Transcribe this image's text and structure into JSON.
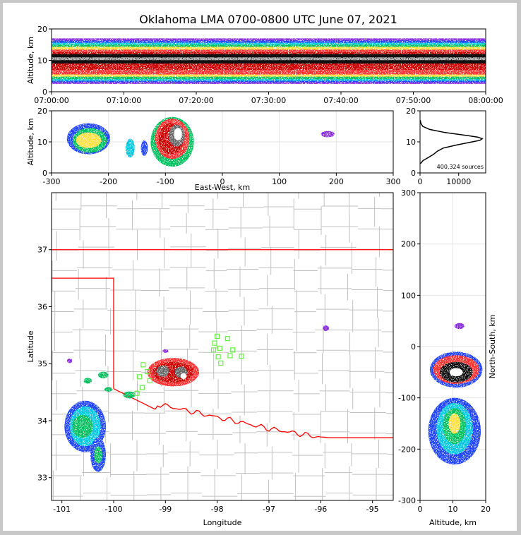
{
  "chart_data": [
    {
      "type": "heatmap",
      "name": "altitude-time",
      "title": "Oklahoma LMA 0700-0800 UTC June 07, 2021",
      "xlabel": "",
      "ylabel": "Altitude, km",
      "x_ticks": [
        "07:00:00",
        "07:10:00",
        "07:20:00",
        "07:30:00",
        "07:40:00",
        "07:50:00",
        "08:00:00"
      ],
      "y_ticks": [
        0,
        10,
        20
      ],
      "ylim": [
        0,
        20
      ],
      "layers": [
        {
          "color": "#8a2be2",
          "alt_range": [
            2.5,
            17.0
          ]
        },
        {
          "color": "#2244ff",
          "alt_range": [
            3.0,
            16.3
          ]
        },
        {
          "color": "#00c8e0",
          "alt_range": [
            3.5,
            15.6
          ]
        },
        {
          "color": "#00c060",
          "alt_range": [
            4.0,
            15.0
          ]
        },
        {
          "color": "#ffe040",
          "alt_range": [
            4.8,
            14.3
          ]
        },
        {
          "color": "#ff3030",
          "alt_range": [
            5.5,
            13.4
          ]
        },
        {
          "color": "#cc0000",
          "alt_range": [
            7.0,
            12.6
          ]
        },
        {
          "color": "#111111",
          "alt_range": [
            9.0,
            12.0
          ]
        }
      ]
    },
    {
      "type": "heatmap",
      "name": "east-west-altitude",
      "xlabel": "East-West, km",
      "ylabel": "Altitude, km",
      "x_ticks": [
        -300,
        -200,
        -100,
        0,
        100,
        200,
        300
      ],
      "y_ticks": [
        0,
        10,
        20
      ],
      "xlim": [
        -300,
        300
      ],
      "ylim": [
        0,
        20
      ],
      "cells": [
        {
          "x": -235,
          "y": 11,
          "rx": 38,
          "ry": 5,
          "color": "#2244ff"
        },
        {
          "x": -233,
          "y": 10.5,
          "rx": 30,
          "ry": 4,
          "color": "#00c060"
        },
        {
          "x": -235,
          "y": 10.5,
          "rx": 22,
          "ry": 2.5,
          "color": "#ffe040"
        },
        {
          "x": -162,
          "y": 8,
          "rx": 8,
          "ry": 3,
          "color": "#00c8e0"
        },
        {
          "x": -137,
          "y": 8,
          "rx": 6,
          "ry": 2.5,
          "color": "#2244ff"
        },
        {
          "x": -88,
          "y": 10,
          "rx": 38,
          "ry": 8,
          "color": "#00c060"
        },
        {
          "x": -88,
          "y": 11,
          "rx": 30,
          "ry": 6.5,
          "color": "#ff3030"
        },
        {
          "x": -90,
          "y": 11,
          "rx": 22,
          "ry": 5,
          "color": "#cc0000"
        },
        {
          "x": -80,
          "y": 12,
          "rx": 14,
          "ry": 3.5,
          "color": "#666666"
        },
        {
          "x": -78,
          "y": 12.5,
          "rx": 7,
          "ry": 2,
          "color": "#ffffff"
        },
        {
          "x": 185,
          "y": 12.5,
          "rx": 12,
          "ry": 1,
          "color": "#8a2be2"
        }
      ]
    },
    {
      "type": "line",
      "name": "altitude-histogram",
      "x_ticks": [
        0,
        10000
      ],
      "y_ticks": [
        0,
        10,
        20
      ],
      "xlim": [
        0,
        17000
      ],
      "ylim": [
        0,
        20
      ],
      "annotation": "400,324 sources",
      "altitude": [
        3,
        4,
        5,
        6,
        7,
        8,
        9,
        10,
        10.5,
        11,
        11.5,
        12,
        12.5,
        13,
        14,
        15,
        16,
        17
      ],
      "counts": [
        100,
        800,
        2200,
        3500,
        4500,
        6000,
        9500,
        13500,
        15500,
        16100,
        15000,
        12500,
        9500,
        6500,
        2500,
        700,
        200,
        50
      ]
    },
    {
      "type": "map",
      "name": "plan-view",
      "xlabel": "Longitude",
      "ylabel": "Latitude",
      "x_ticks": [
        -101,
        -100,
        -99,
        -98,
        -97,
        -96,
        -95
      ],
      "y_ticks": [
        33,
        34,
        35,
        36,
        37
      ],
      "xlim": [
        -101.2,
        -94.6
      ],
      "ylim": [
        32.6,
        38.0
      ],
      "border_color": "#ff0000",
      "county_color": "#c0c0c0",
      "cells": [
        {
          "lon": -100.55,
          "lat": 33.9,
          "rx": 0.4,
          "ry": 0.45,
          "color": "#2244ff"
        },
        {
          "lon": -100.55,
          "lat": 33.9,
          "rx": 0.3,
          "ry": 0.35,
          "color": "#00c8e0"
        },
        {
          "lon": -100.6,
          "lat": 33.9,
          "rx": 0.2,
          "ry": 0.2,
          "color": "#00c060"
        },
        {
          "lon": -100.3,
          "lat": 33.4,
          "rx": 0.15,
          "ry": 0.3,
          "color": "#2244ff"
        },
        {
          "lon": -100.3,
          "lat": 33.4,
          "rx": 0.08,
          "ry": 0.15,
          "color": "#00c060"
        },
        {
          "lon": -100.2,
          "lat": 34.8,
          "rx": 0.1,
          "ry": 0.06,
          "color": "#00c060"
        },
        {
          "lon": -100.5,
          "lat": 34.7,
          "rx": 0.08,
          "ry": 0.05,
          "color": "#00c060"
        },
        {
          "lon": -100.1,
          "lat": 34.55,
          "rx": 0.08,
          "ry": 0.04,
          "color": "#00c060"
        },
        {
          "lon": -99.7,
          "lat": 34.45,
          "rx": 0.12,
          "ry": 0.06,
          "color": "#00c060"
        },
        {
          "lon": -100.85,
          "lat": 35.05,
          "rx": 0.05,
          "ry": 0.04,
          "color": "#8a2be2"
        },
        {
          "lon": -99.0,
          "lat": 35.22,
          "rx": 0.06,
          "ry": 0.03,
          "color": "#8a2be2"
        },
        {
          "lon": -98.85,
          "lat": 34.85,
          "rx": 0.5,
          "ry": 0.25,
          "color": "#ff3030"
        },
        {
          "lon": -98.85,
          "lat": 34.85,
          "rx": 0.4,
          "ry": 0.18,
          "color": "#cc0000"
        },
        {
          "lon": -99.05,
          "lat": 34.87,
          "rx": 0.12,
          "ry": 0.1,
          "color": "#666666"
        },
        {
          "lon": -98.7,
          "lat": 34.85,
          "rx": 0.12,
          "ry": 0.1,
          "color": "#666666"
        },
        {
          "lon": -98.65,
          "lat": 34.78,
          "rx": 0.06,
          "ry": 0.05,
          "color": "#ffffff"
        },
        {
          "lon": -95.9,
          "lat": 35.62,
          "rx": 0.06,
          "ry": 0.05,
          "color": "#8a2be2"
        }
      ],
      "stations": [
        {
          "lon": -98.0,
          "lat": 35.48
        },
        {
          "lon": -97.8,
          "lat": 35.44
        },
        {
          "lon": -98.05,
          "lat": 35.36
        },
        {
          "lon": -97.95,
          "lat": 35.27
        },
        {
          "lon": -98.07,
          "lat": 35.24
        },
        {
          "lon": -97.7,
          "lat": 35.24
        },
        {
          "lon": -97.98,
          "lat": 35.12
        },
        {
          "lon": -97.75,
          "lat": 35.14
        },
        {
          "lon": -97.53,
          "lat": 35.13
        },
        {
          "lon": -97.93,
          "lat": 35.01
        },
        {
          "lon": -99.43,
          "lat": 34.98
        },
        {
          "lon": -99.35,
          "lat": 34.86
        },
        {
          "lon": -99.5,
          "lat": 34.77
        },
        {
          "lon": -99.3,
          "lat": 34.7
        },
        {
          "lon": -99.45,
          "lat": 34.58
        },
        {
          "lon": -99.55,
          "lat": 34.48
        }
      ]
    },
    {
      "type": "heatmap",
      "name": "altitude-north-south",
      "xlabel": "Altitude, km",
      "ylabel": "North-South, km",
      "x_ticks": [
        0,
        10,
        20
      ],
      "y_ticks": [
        -300,
        -200,
        -100,
        0,
        100,
        200,
        300
      ],
      "xlim": [
        0,
        20
      ],
      "ylim": [
        -300,
        300
      ],
      "cells": [
        {
          "alt": 11,
          "ns": -45,
          "rx": 8,
          "ry": 35,
          "color": "#2244ff"
        },
        {
          "alt": 11,
          "ns": -45,
          "rx": 7,
          "ry": 28,
          "color": "#ff3030"
        },
        {
          "alt": 11,
          "ns": -50,
          "rx": 5,
          "ry": 20,
          "color": "#111111"
        },
        {
          "alt": 11,
          "ns": -50,
          "rx": 2,
          "ry": 8,
          "color": "#ffffff"
        },
        {
          "alt": 10.5,
          "ns": -165,
          "rx": 8,
          "ry": 65,
          "color": "#2244ff"
        },
        {
          "alt": 10.5,
          "ns": -160,
          "rx": 5.5,
          "ry": 50,
          "color": "#00c8e0"
        },
        {
          "alt": 10.5,
          "ns": -155,
          "rx": 3.5,
          "ry": 35,
          "color": "#00c060"
        },
        {
          "alt": 10.5,
          "ns": -150,
          "rx": 1.8,
          "ry": 20,
          "color": "#ffe040"
        },
        {
          "alt": 12,
          "ns": 40,
          "rx": 1.5,
          "ry": 6,
          "color": "#8a2be2"
        }
      ]
    }
  ]
}
